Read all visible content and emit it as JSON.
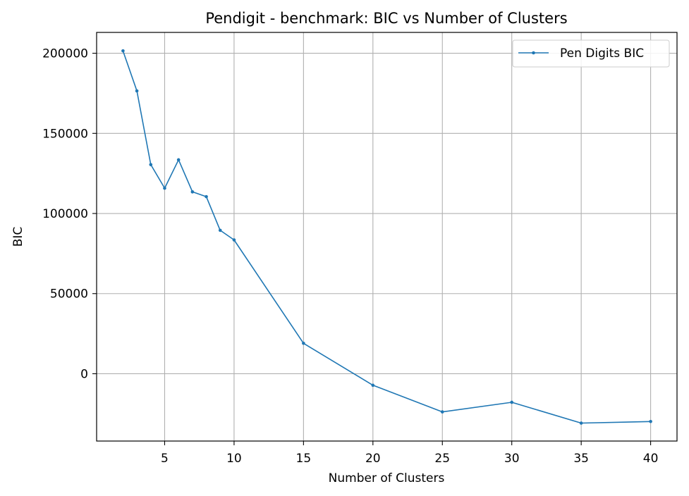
{
  "chart_data": {
    "type": "line",
    "title": "Pendigit - benchmark: BIC vs Number of Clusters",
    "xlabel": "Number of Clusters",
    "ylabel": "BIC",
    "xlim": [
      0.1,
      41.9
    ],
    "ylim": [
      -42000,
      213000
    ],
    "xticks": [
      5,
      10,
      15,
      20,
      25,
      30,
      35,
      40
    ],
    "yticks": [
      0,
      50000,
      100000,
      150000,
      200000
    ],
    "grid": true,
    "legend_position": "top-right",
    "series": [
      {
        "name": "Pen Digits BIC",
        "color": "#1f77b4",
        "x": [
          2,
          3,
          4,
          5,
          6,
          7,
          8,
          9,
          10,
          15,
          20,
          25,
          30,
          35,
          40
        ],
        "y": [
          201500,
          176500,
          130500,
          115800,
          133500,
          113500,
          110500,
          89500,
          83500,
          19000,
          -7200,
          -23800,
          -17800,
          -30800,
          -29800
        ]
      }
    ]
  }
}
